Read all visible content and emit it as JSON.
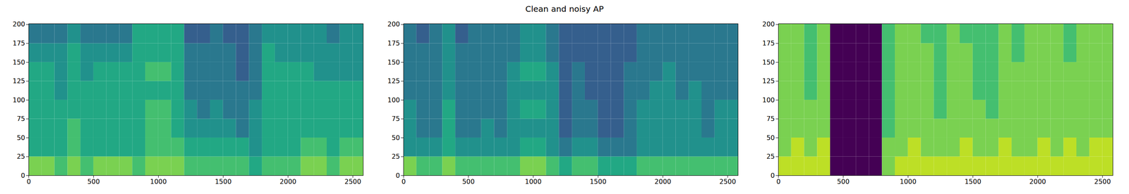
{
  "chart_data": [
    {
      "type": "heatmap",
      "title": "Clean and noisy AP",
      "xlim": [
        0,
        2580
      ],
      "ylim": [
        0,
        201
      ],
      "xticks": [
        0,
        500,
        1000,
        1500,
        2000,
        2500
      ],
      "yticks": [
        0,
        25,
        50,
        75,
        100,
        125,
        150,
        175,
        200
      ],
      "zlim": [
        0,
        10
      ],
      "xbins": [
        0,
        100,
        200,
        300,
        400,
        500,
        600,
        700,
        800,
        900,
        1000,
        1100,
        1200,
        1300,
        1400,
        1500,
        1600,
        1700,
        1800,
        1900,
        2000,
        2100,
        2200,
        2300,
        2400,
        2500,
        2580
      ],
      "ybins": [
        0,
        25,
        50,
        75,
        100,
        125,
        150,
        175,
        201
      ],
      "values": [
        [
          8,
          8,
          7,
          8,
          7,
          8,
          8,
          8,
          7,
          8,
          8,
          8,
          7,
          7,
          7,
          7,
          7,
          6,
          7,
          7,
          7,
          8,
          8,
          7,
          8,
          8
        ],
        [
          6,
          6,
          6,
          7,
          6,
          6,
          6,
          6,
          6,
          7,
          7,
          7,
          6,
          6,
          6,
          6,
          6,
          5,
          6,
          6,
          6,
          7,
          7,
          6,
          7,
          7
        ],
        [
          6,
          6,
          6,
          7,
          6,
          6,
          6,
          6,
          6,
          7,
          7,
          6,
          5,
          5,
          5,
          5,
          4,
          5,
          6,
          6,
          6,
          6,
          6,
          6,
          6,
          6
        ],
        [
          6,
          6,
          6,
          6,
          6,
          6,
          6,
          6,
          6,
          7,
          7,
          6,
          5,
          4,
          5,
          4,
          4,
          5,
          6,
          6,
          6,
          6,
          6,
          6,
          6,
          6
        ],
        [
          6,
          6,
          5,
          6,
          6,
          6,
          6,
          6,
          6,
          6,
          6,
          6,
          4,
          4,
          4,
          4,
          4,
          4,
          6,
          6,
          6,
          6,
          6,
          6,
          6,
          6
        ],
        [
          6,
          6,
          5,
          6,
          5,
          6,
          6,
          6,
          6,
          7,
          7,
          6,
          4,
          4,
          4,
          4,
          3,
          4,
          6,
          6,
          6,
          6,
          5,
          5,
          5,
          5
        ],
        [
          5,
          5,
          5,
          6,
          5,
          5,
          5,
          5,
          6,
          6,
          6,
          6,
          4,
          4,
          4,
          4,
          3,
          4,
          6,
          5,
          5,
          5,
          5,
          5,
          5,
          5
        ],
        [
          4,
          4,
          4,
          5,
          4,
          4,
          4,
          4,
          6,
          6,
          6,
          6,
          3,
          3,
          4,
          3,
          3,
          4,
          5,
          5,
          5,
          5,
          5,
          4,
          5,
          5
        ]
      ]
    },
    {
      "type": "heatmap",
      "xlim": [
        0,
        2580
      ],
      "ylim": [
        0,
        201
      ],
      "xticks": [
        0,
        500,
        1000,
        1500,
        2000,
        2500
      ],
      "yticks": [
        0,
        25,
        50,
        75,
        100,
        125,
        150,
        175,
        200
      ],
      "zlim": [
        0,
        10
      ],
      "xbins": [
        0,
        100,
        200,
        300,
        400,
        500,
        600,
        700,
        800,
        900,
        1000,
        1100,
        1200,
        1300,
        1400,
        1500,
        1600,
        1700,
        1800,
        1900,
        2000,
        2100,
        2200,
        2300,
        2400,
        2500,
        2580
      ],
      "ybins": [
        0,
        25,
        50,
        75,
        100,
        125,
        150,
        175,
        201
      ],
      "values": [
        [
          8,
          7,
          7,
          8,
          7,
          7,
          7,
          7,
          7,
          8,
          8,
          7,
          6,
          7,
          7,
          6,
          6,
          6,
          7,
          7,
          7,
          7,
          7,
          7,
          7,
          7
        ],
        [
          5,
          5,
          5,
          6,
          5,
          5,
          5,
          5,
          5,
          6,
          6,
          5,
          4,
          5,
          5,
          4,
          4,
          4,
          5,
          5,
          5,
          5,
          5,
          5,
          5,
          5
        ],
        [
          5,
          4,
          4,
          6,
          4,
          4,
          5,
          4,
          5,
          5,
          5,
          5,
          3,
          4,
          4,
          3,
          3,
          4,
          5,
          5,
          5,
          5,
          5,
          4,
          5,
          5
        ],
        [
          5,
          4,
          4,
          6,
          4,
          4,
          4,
          4,
          5,
          6,
          6,
          5,
          3,
          4,
          4,
          3,
          3,
          4,
          5,
          5,
          5,
          5,
          5,
          4,
          5,
          5
        ],
        [
          4,
          4,
          4,
          5,
          4,
          4,
          4,
          4,
          5,
          5,
          5,
          5,
          3,
          4,
          3,
          3,
          3,
          4,
          4,
          5,
          5,
          4,
          5,
          4,
          4,
          4
        ],
        [
          4,
          4,
          4,
          5,
          4,
          4,
          4,
          4,
          5,
          6,
          6,
          5,
          3,
          4,
          3,
          3,
          3,
          4,
          4,
          4,
          5,
          4,
          4,
          4,
          4,
          4
        ],
        [
          4,
          4,
          4,
          5,
          4,
          4,
          4,
          4,
          4,
          5,
          5,
          4,
          3,
          3,
          3,
          3,
          3,
          3,
          4,
          4,
          4,
          4,
          4,
          4,
          4,
          4
        ],
        [
          4,
          3,
          4,
          5,
          3,
          4,
          4,
          4,
          4,
          5,
          5,
          4,
          3,
          3,
          3,
          3,
          3,
          3,
          4,
          4,
          4,
          4,
          4,
          4,
          4,
          4
        ]
      ]
    },
    {
      "type": "heatmap",
      "xlim": [
        0,
        2580
      ],
      "ylim": [
        0,
        201
      ],
      "xticks": [
        0,
        500,
        1000,
        1500,
        2000,
        2500
      ],
      "yticks": [
        0,
        25,
        50,
        75,
        100,
        125,
        150,
        175,
        200
      ],
      "zlim": [
        0,
        10
      ],
      "xbins": [
        0,
        100,
        200,
        300,
        400,
        500,
        600,
        700,
        800,
        900,
        1000,
        1100,
        1200,
        1300,
        1400,
        1500,
        1600,
        1700,
        1800,
        1900,
        2000,
        2100,
        2200,
        2300,
        2400,
        2500,
        2580
      ],
      "ybins": [
        0,
        25,
        50,
        75,
        100,
        125,
        150,
        175,
        201
      ],
      "values": [
        [
          9,
          9,
          9,
          9,
          0,
          0,
          0,
          0,
          8,
          9,
          9,
          9,
          9,
          9,
          9,
          9,
          9,
          9,
          9,
          9,
          9,
          9,
          9,
          9,
          9,
          9
        ],
        [
          8,
          9,
          8,
          9,
          0,
          0,
          0,
          0,
          8,
          8,
          9,
          8,
          8,
          8,
          9,
          8,
          8,
          9,
          8,
          8,
          9,
          8,
          9,
          8,
          9,
          9
        ],
        [
          8,
          8,
          8,
          8,
          0,
          0,
          0,
          0,
          7,
          8,
          8,
          8,
          8,
          8,
          8,
          8,
          8,
          8,
          8,
          8,
          8,
          8,
          8,
          8,
          8,
          8
        ],
        [
          8,
          8,
          8,
          8,
          0,
          0,
          0,
          0,
          7,
          8,
          8,
          8,
          7,
          8,
          8,
          8,
          7,
          8,
          8,
          8,
          8,
          8,
          8,
          8,
          8,
          8
        ],
        [
          8,
          8,
          7,
          8,
          0,
          0,
          0,
          0,
          7,
          8,
          8,
          8,
          7,
          8,
          8,
          7,
          7,
          8,
          8,
          8,
          8,
          8,
          8,
          8,
          8,
          8
        ],
        [
          8,
          8,
          7,
          8,
          0,
          0,
          0,
          0,
          7,
          8,
          8,
          8,
          7,
          8,
          8,
          7,
          7,
          8,
          8,
          8,
          8,
          8,
          8,
          8,
          8,
          8
        ],
        [
          8,
          8,
          7,
          8,
          0,
          0,
          0,
          0,
          7,
          8,
          8,
          8,
          7,
          8,
          8,
          7,
          7,
          8,
          7,
          8,
          8,
          8,
          7,
          8,
          8,
          8
        ],
        [
          8,
          8,
          7,
          8,
          0,
          0,
          0,
          0,
          7,
          8,
          8,
          7,
          7,
          8,
          7,
          7,
          7,
          8,
          7,
          8,
          8,
          8,
          7,
          8,
          8,
          8
        ]
      ]
    }
  ]
}
